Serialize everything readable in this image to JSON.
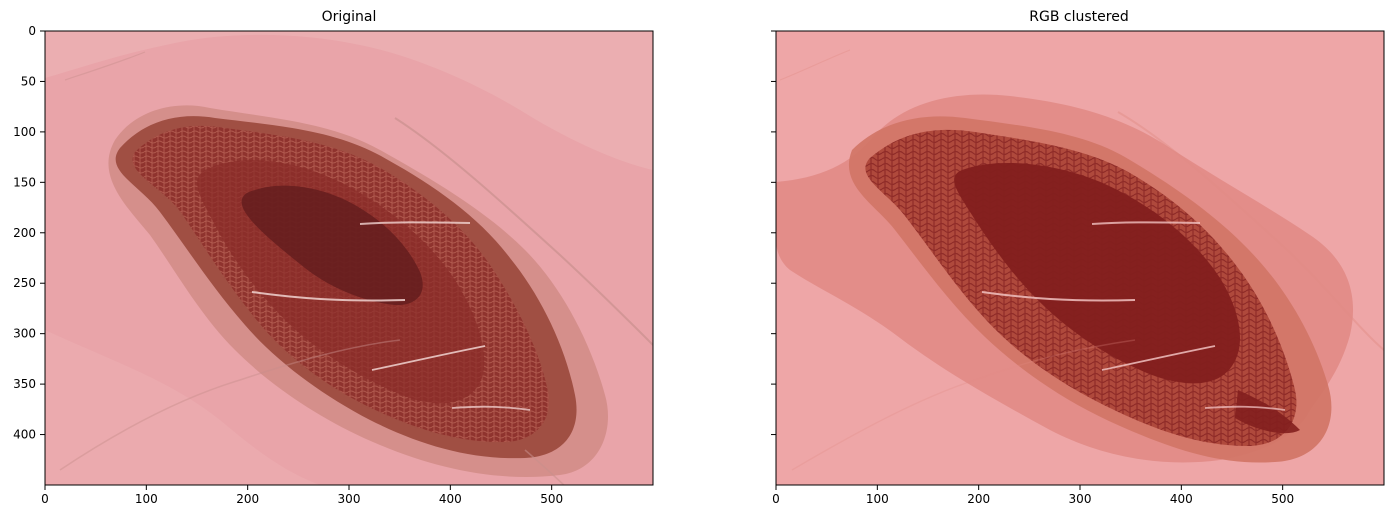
{
  "chart_data": [
    {
      "type": "image",
      "title": "Original",
      "xticks": [
        0,
        100,
        200,
        300,
        400,
        500
      ],
      "yticks": [
        0,
        50,
        100,
        150,
        200,
        250,
        300,
        350,
        400
      ],
      "xlim": [
        0,
        600
      ],
      "ylim": [
        450,
        0
      ],
      "image": {
        "background": "#e9a4a9",
        "colors": {
          "skin": "#eaa3aa",
          "skin_light": "#f0c1c0",
          "halo": "#c57d73",
          "lesion_outer": "#9b4a3d",
          "lesion_mid": "#8b2d29",
          "lesion_core": "#5f1b1c",
          "network": "#bb6a5f",
          "hair": "#c88f8c",
          "hair_light": "#f1d3d1"
        }
      }
    },
    {
      "type": "image",
      "title": "RGB clustered",
      "xticks": [
        0,
        100,
        200,
        300,
        400,
        500
      ],
      "yticks": [
        0,
        50,
        100,
        150,
        200,
        250,
        300,
        350,
        400
      ],
      "xlim": [
        0,
        600
      ],
      "ylim": [
        450,
        0
      ],
      "shared_y": true,
      "image": {
        "background": "#eea6a7",
        "colors": {
          "cluster_1": "#eea6a7",
          "cluster_2": "#e18b86",
          "cluster_3": "#d27667",
          "cluster_4": "#ac4538",
          "cluster_5": "#831f1e"
        }
      }
    }
  ]
}
